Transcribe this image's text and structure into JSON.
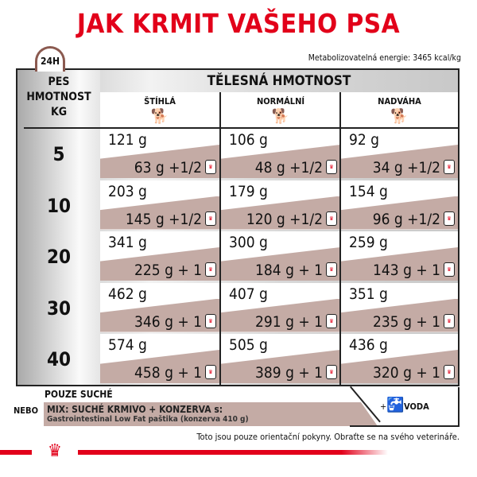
{
  "title": "JAK KRMIT VAŠEHO PSA",
  "clock_label": "24H",
  "energy": "Metabolizovatelná energie: 3465 kcal/kg",
  "table": {
    "left_header": [
      "PES",
      "HMOTNOST",
      "KG"
    ],
    "group_header": "TĚLESNÁ HMOTNOST",
    "columns": [
      {
        "label": "ŠTÍHLÁ",
        "icon": "dog-lean-icon"
      },
      {
        "label": "NORMÁLNÍ",
        "icon": "dog-normal-icon"
      },
      {
        "label": "NADVÁHA",
        "icon": "dog-overweight-icon"
      }
    ],
    "rows": [
      {
        "kg": "5",
        "dry": [
          "121 g",
          "106 g",
          "92 g"
        ],
        "mix": [
          "63 g +1/2",
          "48 g +1/2",
          "34 g +1/2"
        ]
      },
      {
        "kg": "10",
        "dry": [
          "203 g",
          "179 g",
          "154 g"
        ],
        "mix": [
          "145 g +1/2",
          "120 g +1/2",
          "96 g +1/2"
        ]
      },
      {
        "kg": "20",
        "dry": [
          "341 g",
          "300 g",
          "259 g"
        ],
        "mix": [
          "225 g + 1",
          "184 g + 1",
          "143 g + 1"
        ]
      },
      {
        "kg": "30",
        "dry": [
          "462 g",
          "407 g",
          "351 g"
        ],
        "mix": [
          "346 g + 1",
          "291 g + 1",
          "235 g + 1"
        ]
      },
      {
        "kg": "40",
        "dry": [
          "574 g",
          "505 g",
          "436 g"
        ],
        "mix": [
          "458 g + 1",
          "389 g + 1",
          "320 g + 1"
        ]
      }
    ]
  },
  "legend": {
    "dry_only": "POUZE SUCHÉ",
    "or": "NEBO",
    "mix_title": "MIX: SUCHÉ KRMIVO + KONZERVA s:",
    "mix_product": "Gastrointestinal Low Fat paštika (konzerva 410 g)",
    "water_plus": "+",
    "water": "VODA"
  },
  "disclaimer": "Toto jsou pouze orientační pokyny. Obraťte se na svého veterináře.",
  "colors": {
    "brand_red": "#e2001a",
    "mix_band": "#c4aba5"
  }
}
